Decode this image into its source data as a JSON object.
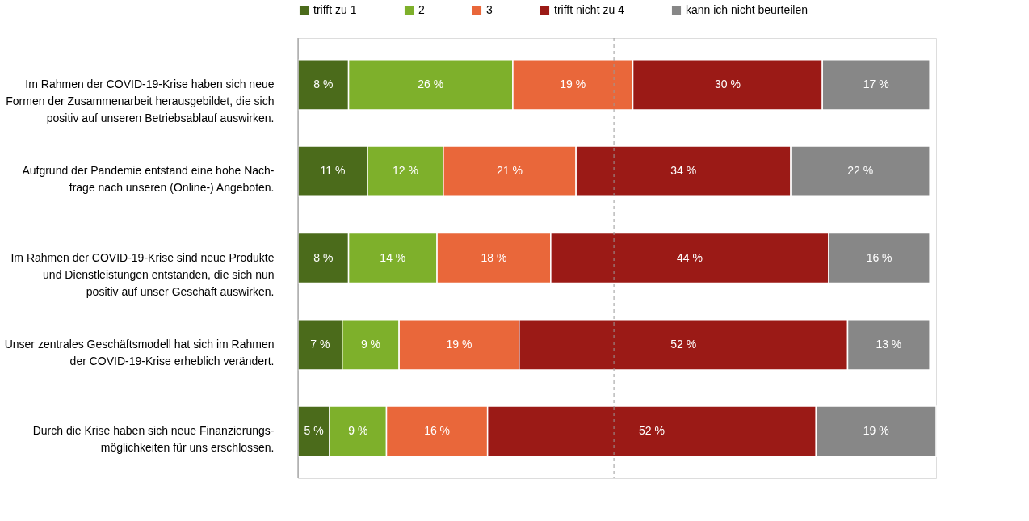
{
  "chart_data": {
    "type": "bar",
    "orientation": "horizontal",
    "stacked": true,
    "tick_labels": "y",
    "legend": "top",
    "categories": [
      "Im Rahmen der COVID-19-Krise haben sich neue\nFormen der Zusammenarbeit herausgebildet, die sich\npositiv auf unseren Betriebsablauf auswirken.",
      "Aufgrund der Pandemie entstand eine hohe Nach-\nfrage nach unseren (Online-) Angeboten.",
      "Im Rahmen der COVID-19-Krise sind neue Produkte\nund Dienstleistungen entstanden, die sich nun\npositiv auf unser Geschäft auswirken.",
      "Unser zentrales Geschäftsmodell hat sich im Rahmen\nder COVID-19-Krise erheblich verändert.",
      "Durch die Krise haben sich neue Finanzierungs-\nmöglichkeiten für uns erschlossen."
    ],
    "series": [
      {
        "name": "trifft zu 1",
        "color": "#4b6b1b",
        "values": [
          8,
          11,
          8,
          7,
          5
        ],
        "value_labels": [
          "8 %",
          "11 %",
          "8 %",
          "7 %",
          "5 %"
        ]
      },
      {
        "name": "2",
        "color": "#7eb02b",
        "values": [
          26,
          12,
          14,
          9,
          9
        ],
        "value_labels": [
          "26 %",
          "12 %",
          "14 %",
          "9 %",
          "9 %"
        ]
      },
      {
        "name": "3",
        "color": "#e9673a",
        "values": [
          19,
          21,
          18,
          19,
          16
        ],
        "value_labels": [
          "19 %",
          "21 %",
          "18 %",
          "19 %",
          "16 %"
        ]
      },
      {
        "name": "trifft nicht zu 4",
        "color": "#9b1a16",
        "values": [
          30,
          34,
          44,
          52,
          52
        ],
        "value_labels": [
          "30 %",
          "34 %",
          "44 %",
          "52 %",
          "52 %"
        ]
      },
      {
        "name": "kann ich nicht beurteilen",
        "color": "#878787",
        "values": [
          17,
          22,
          16,
          13,
          19
        ],
        "value_labels": [
          "17 %",
          "22 %",
          "16 %",
          "13 %",
          "19 %"
        ]
      }
    ],
    "ref_lines": [
      {
        "axis": "x",
        "value": 50,
        "label": null,
        "color": "#999999",
        "line_style": "dashed"
      }
    ]
  }
}
